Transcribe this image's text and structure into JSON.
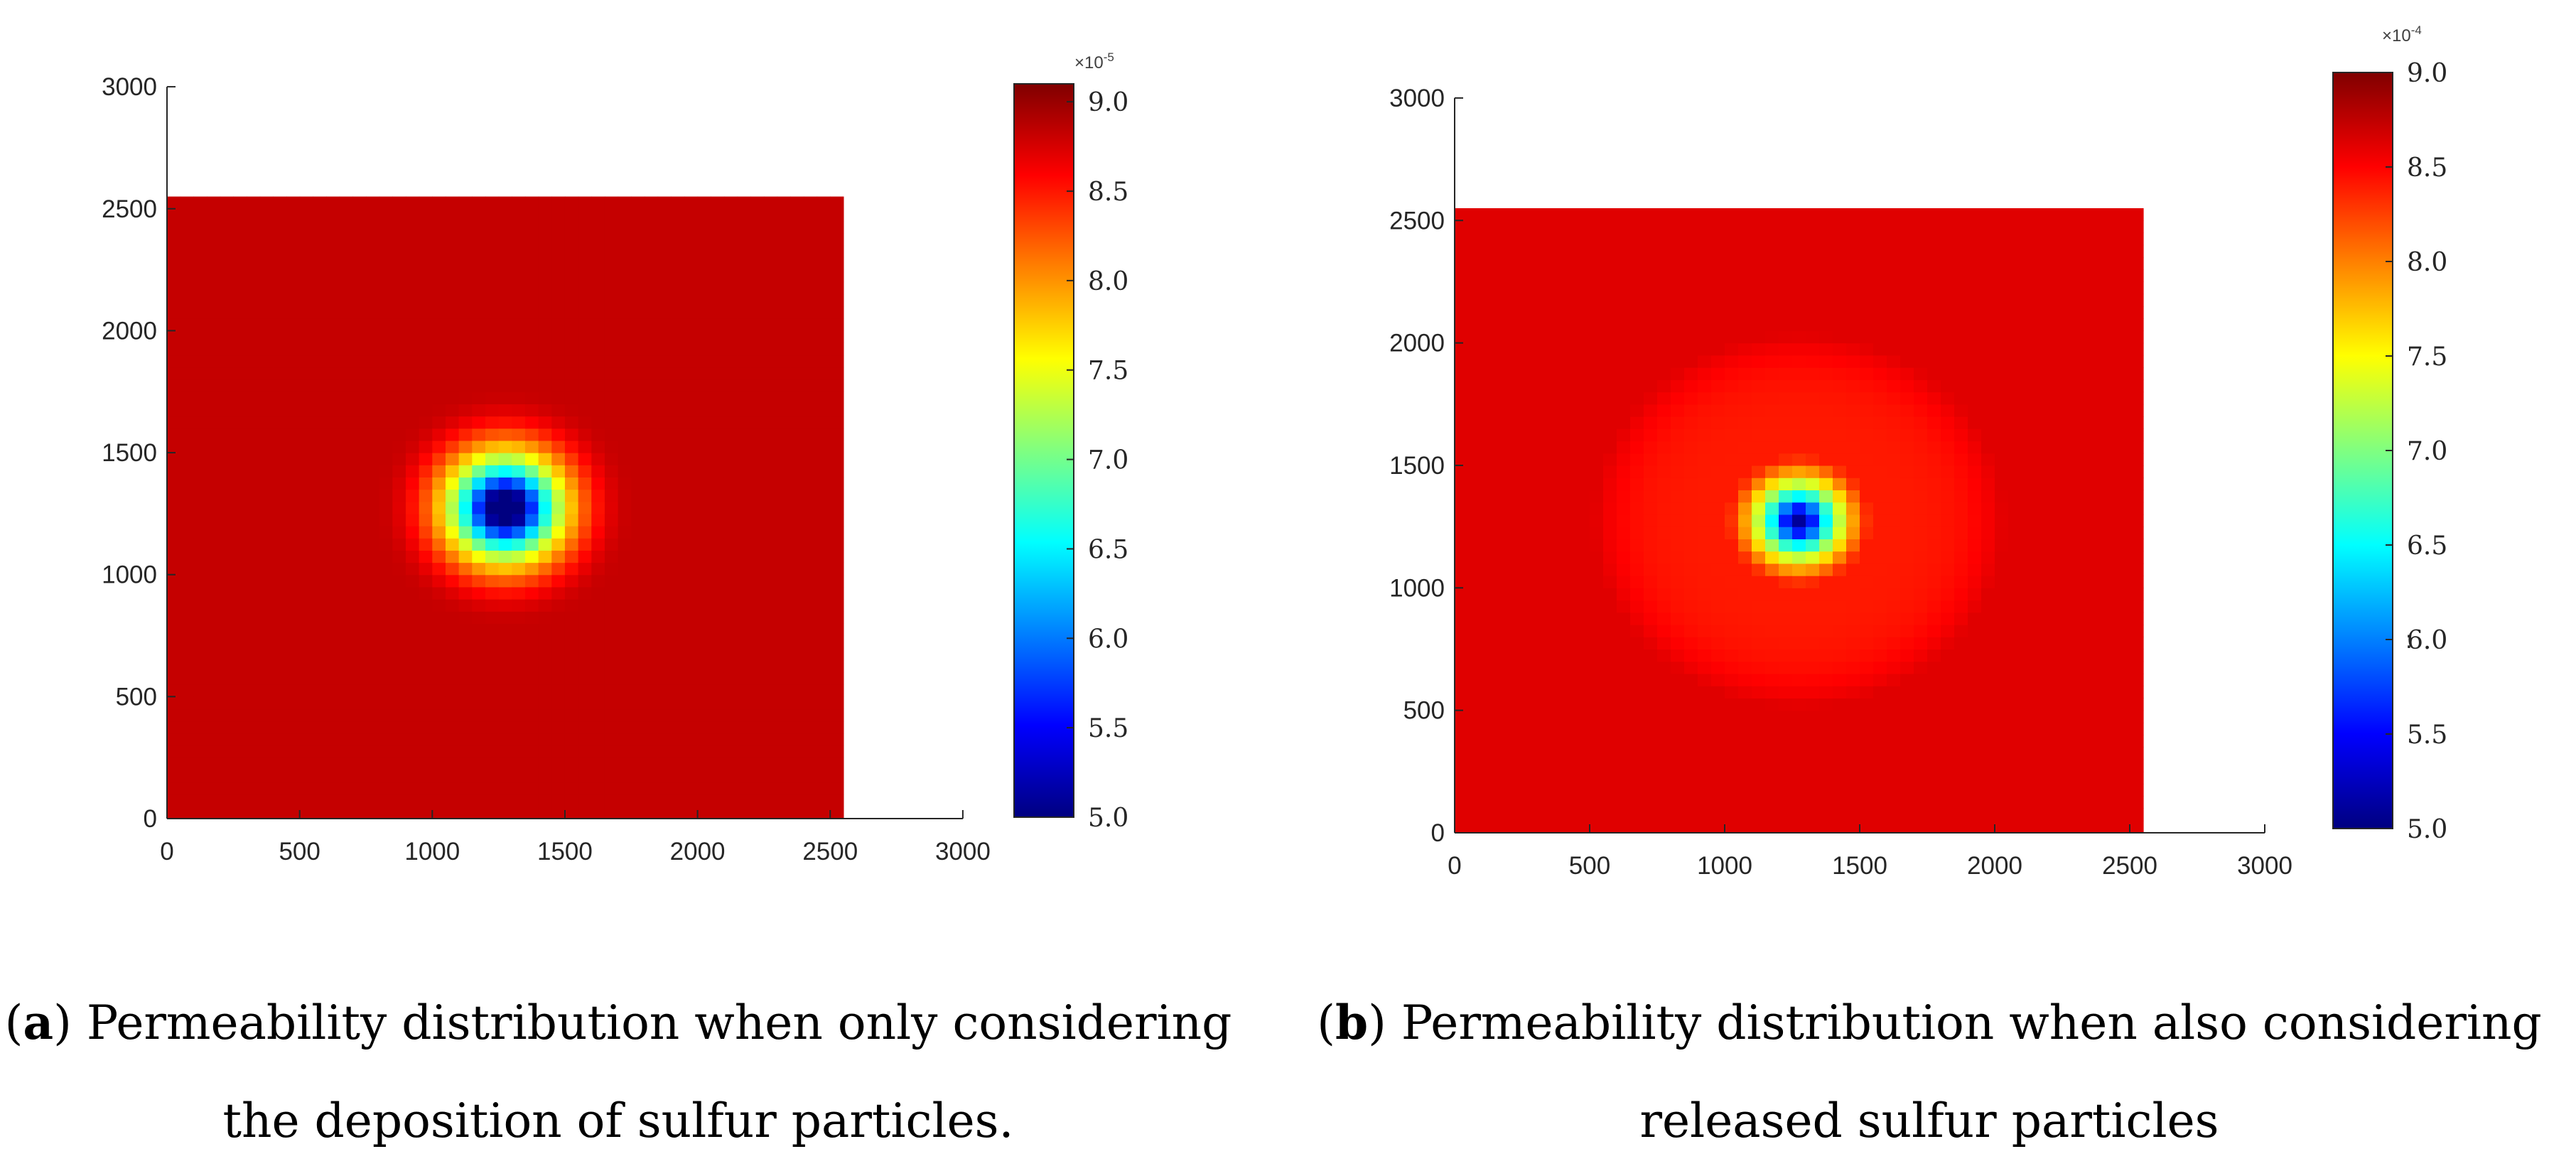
{
  "chart_data": [
    {
      "type": "heatmap",
      "panel_label": "a",
      "title": "",
      "xlabel": "",
      "ylabel": "",
      "xlim": [
        0,
        3000
      ],
      "ylim": [
        0,
        3000
      ],
      "domain": [
        0,
        2550
      ],
      "x_ticks": [
        "0",
        "500",
        "1000",
        "1500",
        "2000",
        "2500",
        "3000"
      ],
      "y_ticks": [
        "0",
        "500",
        "1000",
        "1500",
        "2000",
        "2500",
        "3000"
      ],
      "field": {
        "background": 8.82,
        "center": [
          1275,
          1275
        ],
        "min_value": 5.0,
        "core_radius": 65,
        "falloff_radius": 500,
        "falloff_exponent": 2.4,
        "halo_value": 0,
        "halo_radius": 0,
        "cell": 50
      },
      "colorbar": {
        "min": 5.0,
        "max": 9.1,
        "ticks": [
          9.0,
          8.5,
          8.0,
          7.5,
          7.0,
          6.5,
          6.0,
          5.5,
          5.0
        ],
        "tick_labels": [
          "9.0",
          "8.5",
          "8.0",
          "7.5",
          "7.0",
          "6.5",
          "6.0",
          "5.5",
          "5.0"
        ],
        "multiplier_base": "×10",
        "multiplier_exp": "-5"
      },
      "caption_label": "a",
      "caption_line1": ") Permeability distribution when only considering",
      "caption_line2": "the deposition of sulfur particles."
    },
    {
      "type": "heatmap",
      "panel_label": "b",
      "title": "",
      "xlabel": "",
      "ylabel": "",
      "xlim": [
        0,
        3000
      ],
      "ylim": [
        0,
        3000
      ],
      "domain": [
        0,
        2550
      ],
      "x_ticks": [
        "0",
        "500",
        "1000",
        "1500",
        "2000",
        "2500",
        "3000"
      ],
      "y_ticks": [
        "0",
        "500",
        "1000",
        "1500",
        "2000",
        "2500",
        "3000"
      ],
      "field": {
        "background": 8.62,
        "center": [
          1275,
          1275
        ],
        "min_value": 5.1,
        "core_radius": 25,
        "falloff_radius": 330,
        "falloff_exponent": 1.8,
        "halo_value": 8.4,
        "halo_radius": 760,
        "cell": 50
      },
      "colorbar": {
        "min": 5.0,
        "max": 9.0,
        "ticks": [
          9.0,
          8.5,
          8.0,
          7.5,
          7.0,
          6.5,
          6.0,
          5.5,
          5.0
        ],
        "tick_labels": [
          "9.0",
          "8.5",
          "8.0",
          "7.5",
          "7.0",
          "6.5",
          "6.0",
          "5.5",
          "5.0"
        ],
        "multiplier_base": "×10",
        "multiplier_exp": "-4"
      },
      "caption_label": "b",
      "caption_line1": ") Permeability distribution when also considering",
      "caption_line2": "released sulfur particles"
    }
  ],
  "stray_mark": ":"
}
